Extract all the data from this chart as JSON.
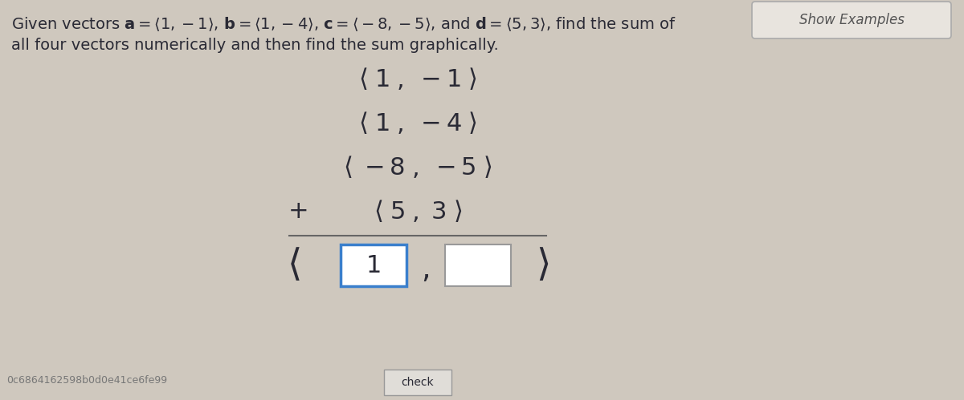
{
  "bg_color": "#cfc8be",
  "text_color": "#2a2a35",
  "title_line1": "Given vectors $\\mathbf{a} = \\langle 1, -1 \\rangle$, $\\mathbf{b} = \\langle 1, -4 \\rangle$, $\\mathbf{c} = \\langle -8, -5 \\rangle$, and $\\mathbf{d} = \\langle 5, 3 \\rangle$, find the sum of",
  "title_line2": "all four vectors numerically and then find the sum graphically.",
  "show_examples_label": "Show Examples",
  "vec_rows": [
    "$\\langle\\; 1 \\;,\\; -1 \\;\\rangle$",
    "$\\langle\\; 1 \\;,\\; -4 \\;\\rangle$",
    "$\\langle\\; -8 \\;,\\; -5 \\;\\rangle$",
    "$\\langle\\; 5 \\;,\\; 3 \\;\\rangle$"
  ],
  "plus_sign": "$+$",
  "answer_box1_text": "1",
  "check_label": "check",
  "footer_text": "0c6864162598b0d0e41ce6fe99",
  "box_blue_color": "#3a7fcc",
  "box_gray_color": "#999999",
  "line_color": "#666666",
  "show_examples_box_color": "#cccccc",
  "title_fontsize": 14,
  "vec_fontsize": 22,
  "plus_fontsize": 22,
  "bracket_fontsize": 30,
  "footer_fontsize": 9,
  "check_fontsize": 10
}
